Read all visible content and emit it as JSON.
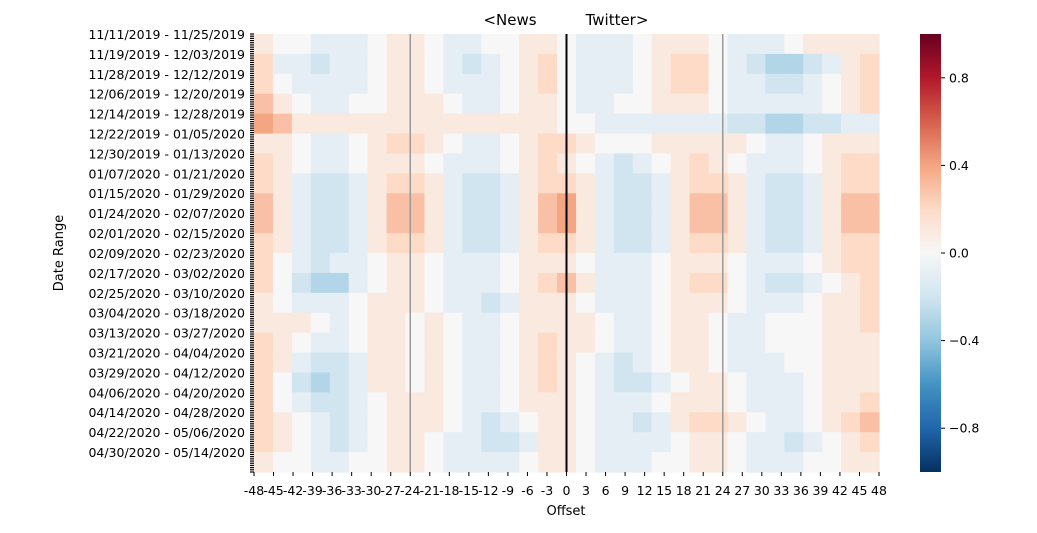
{
  "chart_data": {
    "type": "heatmap",
    "title_left": "<News",
    "title_right": "Twitter>",
    "xlabel": "Offset",
    "ylabel": "Date Range",
    "x_range": [
      -48,
      48
    ],
    "x_ticks": [
      -48,
      -45,
      -42,
      -39,
      -36,
      -33,
      -30,
      -27,
      -24,
      -21,
      -18,
      -15,
      -12,
      -9,
      -6,
      -3,
      0,
      3,
      6,
      9,
      12,
      15,
      18,
      21,
      24,
      27,
      30,
      33,
      36,
      39,
      42,
      45,
      48
    ],
    "y_tick_labels": [
      "11/11/2019 - 11/25/2019",
      "11/19/2019 - 12/03/2019",
      "11/28/2019 - 12/12/2019",
      "12/06/2019 - 12/20/2019",
      "12/14/2019 - 12/28/2019",
      "12/22/2019 - 01/05/2020",
      "12/30/2019 - 01/13/2020",
      "01/07/2020 - 01/21/2020",
      "01/15/2020 - 01/29/2020",
      "01/24/2020 - 02/07/2020",
      "02/01/2020 - 02/15/2020",
      "02/09/2020 - 02/23/2020",
      "02/17/2020 - 03/02/2020",
      "02/25/2020 - 03/10/2020",
      "03/04/2020 - 03/18/2020",
      "03/13/2020 - 03/27/2020",
      "03/21/2020 - 04/04/2020",
      "03/29/2020 - 04/12/2020",
      "04/06/2020 - 04/20/2020",
      "04/14/2020 - 04/28/2020",
      "04/22/2020 - 05/06/2020",
      "04/30/2020 - 05/14/2020"
    ],
    "colorbar": {
      "colormap": "RdBu_r",
      "range": [
        -1,
        1
      ],
      "ticks": [
        0.8,
        0.4,
        0.0,
        -0.4,
        -0.8
      ],
      "tick_labels": [
        "0.8",
        "0.4",
        "0.0",
        "−0.4",
        "−0.8"
      ]
    },
    "reference_lines": [
      {
        "x": 0,
        "color": "#000000",
        "style": "solid"
      },
      {
        "x": -24,
        "color": "#999999",
        "style": "solid"
      },
      {
        "x": 24,
        "color": "#999999",
        "style": "solid"
      }
    ],
    "grid": false,
    "approx_values": [
      [
        0.1,
        0.0,
        0.0,
        -0.1,
        -0.1,
        -0.1,
        0.0,
        0.1,
        0.1,
        0.0,
        -0.1,
        -0.1,
        0.0,
        0.0,
        0.1,
        0.1,
        0.0,
        -0.1,
        -0.1,
        -0.1,
        0.0,
        0.1,
        0.1,
        0.1,
        0.0,
        -0.1,
        -0.1,
        -0.1,
        0.0,
        0.1,
        0.1,
        0.1,
        0.1
      ],
      [
        0.2,
        -0.1,
        -0.1,
        -0.2,
        -0.1,
        -0.1,
        0.0,
        0.1,
        0.1,
        0.0,
        -0.1,
        -0.2,
        -0.1,
        0.0,
        0.1,
        0.2,
        0.0,
        -0.1,
        -0.1,
        -0.1,
        0.0,
        0.1,
        0.2,
        0.2,
        0.0,
        -0.1,
        -0.2,
        -0.3,
        -0.3,
        -0.2,
        -0.1,
        0.1,
        0.2
      ],
      [
        0.2,
        0.0,
        -0.1,
        -0.1,
        -0.1,
        -0.1,
        0.0,
        0.1,
        0.1,
        0.0,
        -0.1,
        -0.1,
        -0.1,
        0.0,
        0.1,
        0.2,
        0.0,
        -0.1,
        -0.1,
        -0.1,
        0.0,
        0.1,
        0.2,
        0.2,
        0.0,
        -0.1,
        -0.1,
        -0.2,
        -0.2,
        -0.1,
        0.0,
        0.1,
        0.2
      ],
      [
        0.3,
        0.1,
        0.0,
        -0.1,
        -0.1,
        0.0,
        0.0,
        0.1,
        0.1,
        0.1,
        0.0,
        -0.1,
        -0.1,
        0.0,
        0.1,
        0.1,
        0.0,
        -0.1,
        -0.1,
        0.0,
        0.0,
        0.1,
        0.1,
        0.1,
        0.0,
        -0.1,
        -0.1,
        -0.1,
        -0.1,
        -0.1,
        0.0,
        0.1,
        0.2
      ],
      [
        0.4,
        0.3,
        0.1,
        0.1,
        0.1,
        0.1,
        0.1,
        0.1,
        0.1,
        0.1,
        0.1,
        0.1,
        0.1,
        0.1,
        0.1,
        0.1,
        0.0,
        0.0,
        -0.1,
        -0.1,
        -0.1,
        -0.1,
        -0.1,
        -0.1,
        -0.1,
        -0.2,
        -0.2,
        -0.3,
        -0.3,
        -0.2,
        -0.2,
        -0.1,
        -0.1
      ],
      [
        0.1,
        0.1,
        0.0,
        -0.1,
        -0.1,
        0.0,
        0.1,
        0.2,
        0.2,
        0.1,
        0.0,
        -0.1,
        -0.1,
        0.0,
        0.1,
        0.2,
        0.2,
        0.1,
        0.0,
        0.0,
        0.0,
        0.1,
        0.1,
        0.1,
        0.1,
        0.1,
        0.0,
        -0.1,
        -0.1,
        0.0,
        0.1,
        0.1,
        0.1
      ],
      [
        0.2,
        0.1,
        0.0,
        -0.1,
        -0.1,
        0.0,
        0.1,
        0.1,
        0.1,
        0.0,
        -0.1,
        -0.1,
        -0.1,
        0.0,
        0.1,
        0.2,
        0.1,
        0.0,
        -0.1,
        -0.2,
        -0.1,
        0.0,
        0.1,
        0.2,
        0.1,
        0.0,
        -0.1,
        -0.1,
        -0.1,
        0.0,
        0.1,
        0.2,
        0.2
      ],
      [
        0.2,
        0.1,
        -0.1,
        -0.2,
        -0.2,
        -0.1,
        0.1,
        0.2,
        0.2,
        0.1,
        -0.1,
        -0.2,
        -0.2,
        -0.1,
        0.1,
        0.2,
        0.2,
        0.1,
        -0.1,
        -0.2,
        -0.2,
        -0.1,
        0.1,
        0.2,
        0.2,
        0.1,
        -0.1,
        -0.2,
        -0.2,
        -0.1,
        0.1,
        0.2,
        0.2
      ],
      [
        0.3,
        0.1,
        -0.1,
        -0.2,
        -0.2,
        -0.1,
        0.1,
        0.3,
        0.3,
        0.1,
        -0.1,
        -0.2,
        -0.2,
        -0.1,
        0.1,
        0.3,
        0.4,
        0.1,
        -0.1,
        -0.2,
        -0.2,
        -0.1,
        0.1,
        0.3,
        0.3,
        0.1,
        -0.1,
        -0.2,
        -0.2,
        -0.1,
        0.1,
        0.3,
        0.3
      ],
      [
        0.3,
        0.1,
        -0.1,
        -0.2,
        -0.2,
        -0.1,
        0.1,
        0.3,
        0.3,
        0.1,
        -0.1,
        -0.2,
        -0.2,
        -0.1,
        0.1,
        0.3,
        0.4,
        0.1,
        -0.1,
        -0.2,
        -0.2,
        -0.1,
        0.1,
        0.3,
        0.3,
        0.1,
        -0.1,
        -0.2,
        -0.2,
        -0.1,
        0.1,
        0.3,
        0.3
      ],
      [
        0.2,
        0.1,
        -0.1,
        -0.2,
        -0.2,
        -0.1,
        0.1,
        0.2,
        0.2,
        0.1,
        -0.1,
        -0.2,
        -0.2,
        -0.1,
        0.1,
        0.2,
        0.2,
        0.1,
        -0.1,
        -0.2,
        -0.2,
        -0.1,
        0.1,
        0.2,
        0.2,
        0.1,
        -0.1,
        -0.2,
        -0.2,
        -0.1,
        0.1,
        0.2,
        0.2
      ],
      [
        0.2,
        0.0,
        -0.1,
        -0.2,
        -0.1,
        -0.1,
        0.0,
        0.1,
        0.1,
        0.0,
        -0.1,
        -0.1,
        -0.1,
        0.0,
        0.1,
        0.1,
        0.1,
        0.0,
        -0.1,
        -0.1,
        -0.1,
        0.0,
        0.1,
        0.1,
        0.1,
        0.0,
        -0.1,
        -0.1,
        -0.1,
        0.0,
        0.1,
        0.2,
        0.2
      ],
      [
        0.2,
        0.0,
        -0.2,
        -0.3,
        -0.3,
        -0.1,
        0.0,
        0.1,
        0.1,
        0.0,
        -0.1,
        -0.1,
        -0.1,
        0.0,
        0.1,
        0.2,
        0.3,
        0.1,
        -0.1,
        -0.1,
        -0.1,
        0.0,
        0.1,
        0.2,
        0.2,
        0.0,
        -0.1,
        -0.2,
        -0.2,
        -0.1,
        0.0,
        0.1,
        0.2
      ],
      [
        0.1,
        0.0,
        -0.1,
        -0.1,
        -0.1,
        0.0,
        0.1,
        0.1,
        0.1,
        0.0,
        -0.1,
        -0.1,
        -0.2,
        -0.1,
        0.1,
        0.1,
        0.1,
        0.0,
        -0.1,
        -0.1,
        -0.1,
        0.0,
        0.1,
        0.1,
        0.1,
        0.0,
        -0.1,
        -0.1,
        -0.1,
        0.0,
        0.1,
        0.1,
        0.2
      ],
      [
        0.1,
        0.1,
        0.1,
        0.0,
        -0.1,
        0.0,
        0.1,
        0.1,
        0.0,
        0.1,
        0.0,
        -0.1,
        -0.1,
        0.0,
        0.1,
        0.1,
        0.1,
        0.1,
        0.0,
        -0.1,
        -0.1,
        0.0,
        0.1,
        0.1,
        0.0,
        -0.1,
        -0.1,
        0.0,
        0.0,
        0.0,
        0.1,
        0.1,
        0.2
      ],
      [
        0.2,
        0.1,
        0.0,
        -0.1,
        -0.1,
        0.0,
        0.1,
        0.1,
        0.0,
        0.1,
        0.0,
        -0.1,
        -0.1,
        0.0,
        0.1,
        0.2,
        0.1,
        0.1,
        0.0,
        -0.1,
        -0.1,
        0.0,
        0.1,
        0.1,
        0.0,
        -0.1,
        -0.1,
        0.0,
        0.0,
        0.0,
        0.1,
        0.1,
        0.1
      ],
      [
        0.2,
        0.1,
        -0.1,
        -0.2,
        -0.2,
        -0.1,
        0.1,
        0.1,
        0.0,
        0.1,
        0.0,
        -0.1,
        -0.1,
        0.0,
        0.1,
        0.2,
        0.1,
        0.0,
        -0.1,
        -0.2,
        -0.1,
        0.0,
        0.1,
        0.1,
        0.0,
        -0.1,
        -0.1,
        -0.1,
        0.0,
        0.0,
        0.1,
        0.1,
        0.1
      ],
      [
        0.2,
        0.0,
        -0.2,
        -0.3,
        -0.2,
        -0.1,
        0.1,
        0.1,
        0.0,
        0.1,
        0.0,
        -0.1,
        -0.1,
        0.0,
        0.1,
        0.2,
        0.1,
        0.0,
        -0.1,
        -0.2,
        -0.2,
        -0.1,
        0.0,
        0.1,
        0.1,
        0.0,
        -0.1,
        -0.1,
        -0.1,
        0.0,
        0.1,
        0.1,
        0.1
      ],
      [
        0.2,
        0.0,
        -0.1,
        -0.2,
        -0.2,
        -0.1,
        0.0,
        0.1,
        0.1,
        0.1,
        0.0,
        -0.1,
        -0.1,
        0.0,
        0.1,
        0.1,
        0.1,
        0.0,
        -0.1,
        -0.1,
        -0.1,
        0.0,
        0.1,
        0.1,
        0.1,
        0.0,
        -0.1,
        -0.1,
        -0.1,
        0.0,
        0.1,
        0.1,
        0.2
      ],
      [
        0.2,
        0.1,
        0.0,
        -0.1,
        -0.2,
        -0.1,
        0.0,
        0.1,
        0.1,
        0.1,
        0.0,
        -0.1,
        -0.2,
        -0.1,
        0.0,
        0.1,
        0.1,
        0.0,
        -0.1,
        -0.1,
        -0.2,
        -0.1,
        0.1,
        0.2,
        0.2,
        0.1,
        0.0,
        -0.1,
        -0.1,
        0.0,
        0.1,
        0.2,
        0.3
      ],
      [
        0.2,
        0.1,
        0.0,
        -0.1,
        -0.2,
        -0.1,
        0.0,
        0.1,
        0.1,
        0.0,
        -0.1,
        -0.1,
        -0.2,
        -0.2,
        -0.1,
        0.1,
        0.1,
        0.0,
        -0.1,
        -0.1,
        -0.1,
        -0.1,
        0.0,
        0.1,
        0.1,
        0.0,
        -0.1,
        -0.1,
        -0.2,
        -0.1,
        0.0,
        0.1,
        0.2
      ],
      [
        0.1,
        0.0,
        0.0,
        -0.1,
        -0.1,
        0.0,
        0.0,
        0.1,
        0.1,
        0.0,
        -0.1,
        -0.1,
        -0.1,
        -0.1,
        0.0,
        0.1,
        0.1,
        0.0,
        -0.1,
        -0.1,
        -0.1,
        0.0,
        0.0,
        0.1,
        0.1,
        0.0,
        -0.1,
        -0.1,
        -0.1,
        0.0,
        0.0,
        0.1,
        0.1
      ]
    ]
  }
}
